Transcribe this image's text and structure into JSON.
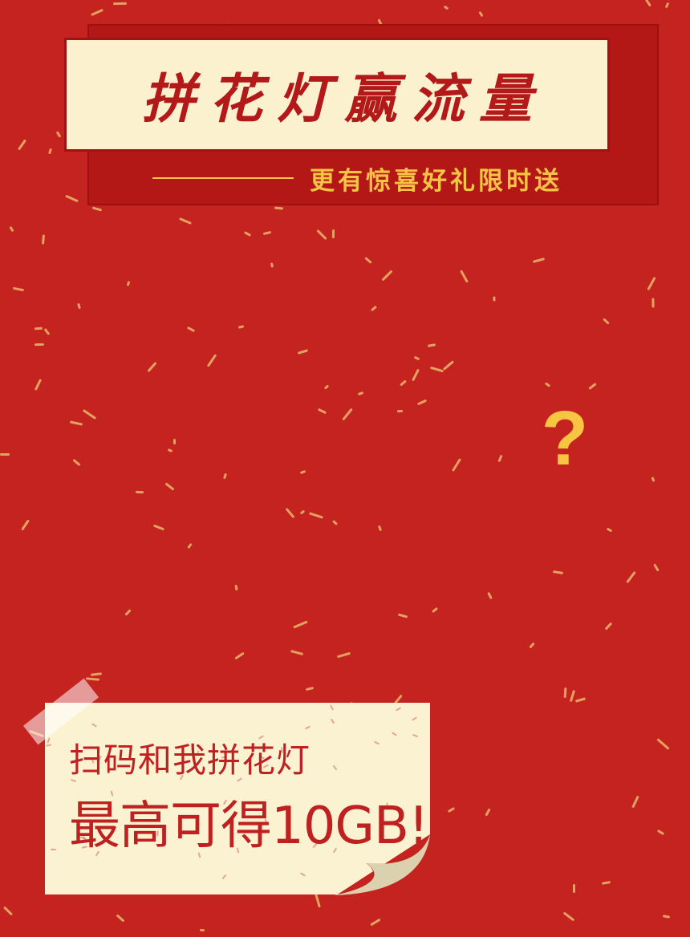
{
  "banner": {
    "title": "拼花灯赢流量",
    "subtitle": "更有惊喜好礼限时送"
  },
  "question_mark": "?",
  "note": {
    "line1": "扫码和我拼花灯",
    "line2": "最高可得10GB!"
  },
  "colors": {
    "background": "#c5231f",
    "banner_front": "#fbf1cf",
    "accent_gold": "#f6c344",
    "title_red": "#b4191a",
    "note_bg": "#fbf2d2"
  }
}
